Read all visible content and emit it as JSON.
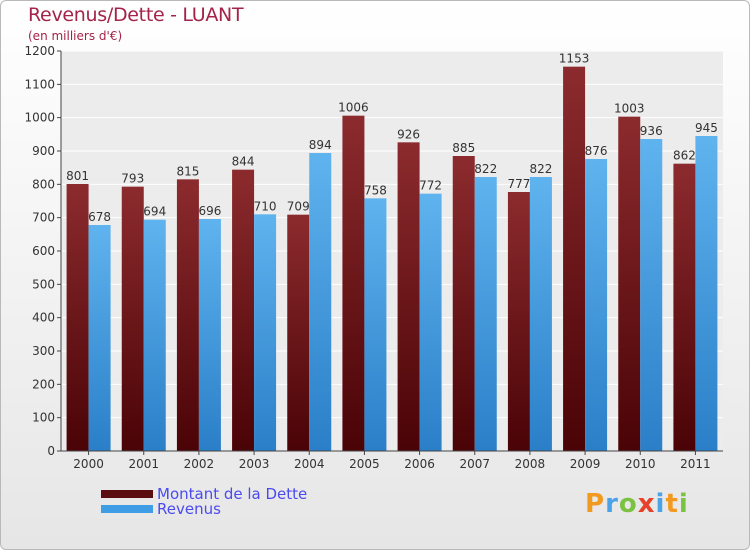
{
  "chart_data": {
    "type": "bar",
    "title": "Revenus/Dette - LUANT",
    "subtitle": "(en milliers d'€)",
    "categories": [
      "2000",
      "2001",
      "2002",
      "2003",
      "2004",
      "2005",
      "2006",
      "2007",
      "2008",
      "2009",
      "2010",
      "2011"
    ],
    "series": [
      {
        "name": "Montant de la Dette",
        "color": "#7a1f21",
        "values": [
          801,
          793,
          815,
          844,
          709,
          1006,
          926,
          885,
          777,
          1153,
          1003,
          862
        ]
      },
      {
        "name": "Revenus",
        "color": "#4aa3e8",
        "values": [
          678,
          694,
          696,
          710,
          894,
          758,
          772,
          822,
          822,
          876,
          936,
          945
        ]
      }
    ],
    "ylim": [
      0,
      1200
    ],
    "yticks": [
      0,
      100,
      200,
      300,
      400,
      500,
      600,
      700,
      800,
      900,
      1000,
      1100,
      1200
    ],
    "grid": true,
    "legend_position": "bottom-left"
  },
  "branding": {
    "logo_text": "Proxiti",
    "logo_colors": [
      "#f29a1f",
      "#4aa3e8",
      "#7cc242",
      "#e8412a",
      "#4aa3e8",
      "#f29a1f",
      "#7cc242"
    ]
  }
}
